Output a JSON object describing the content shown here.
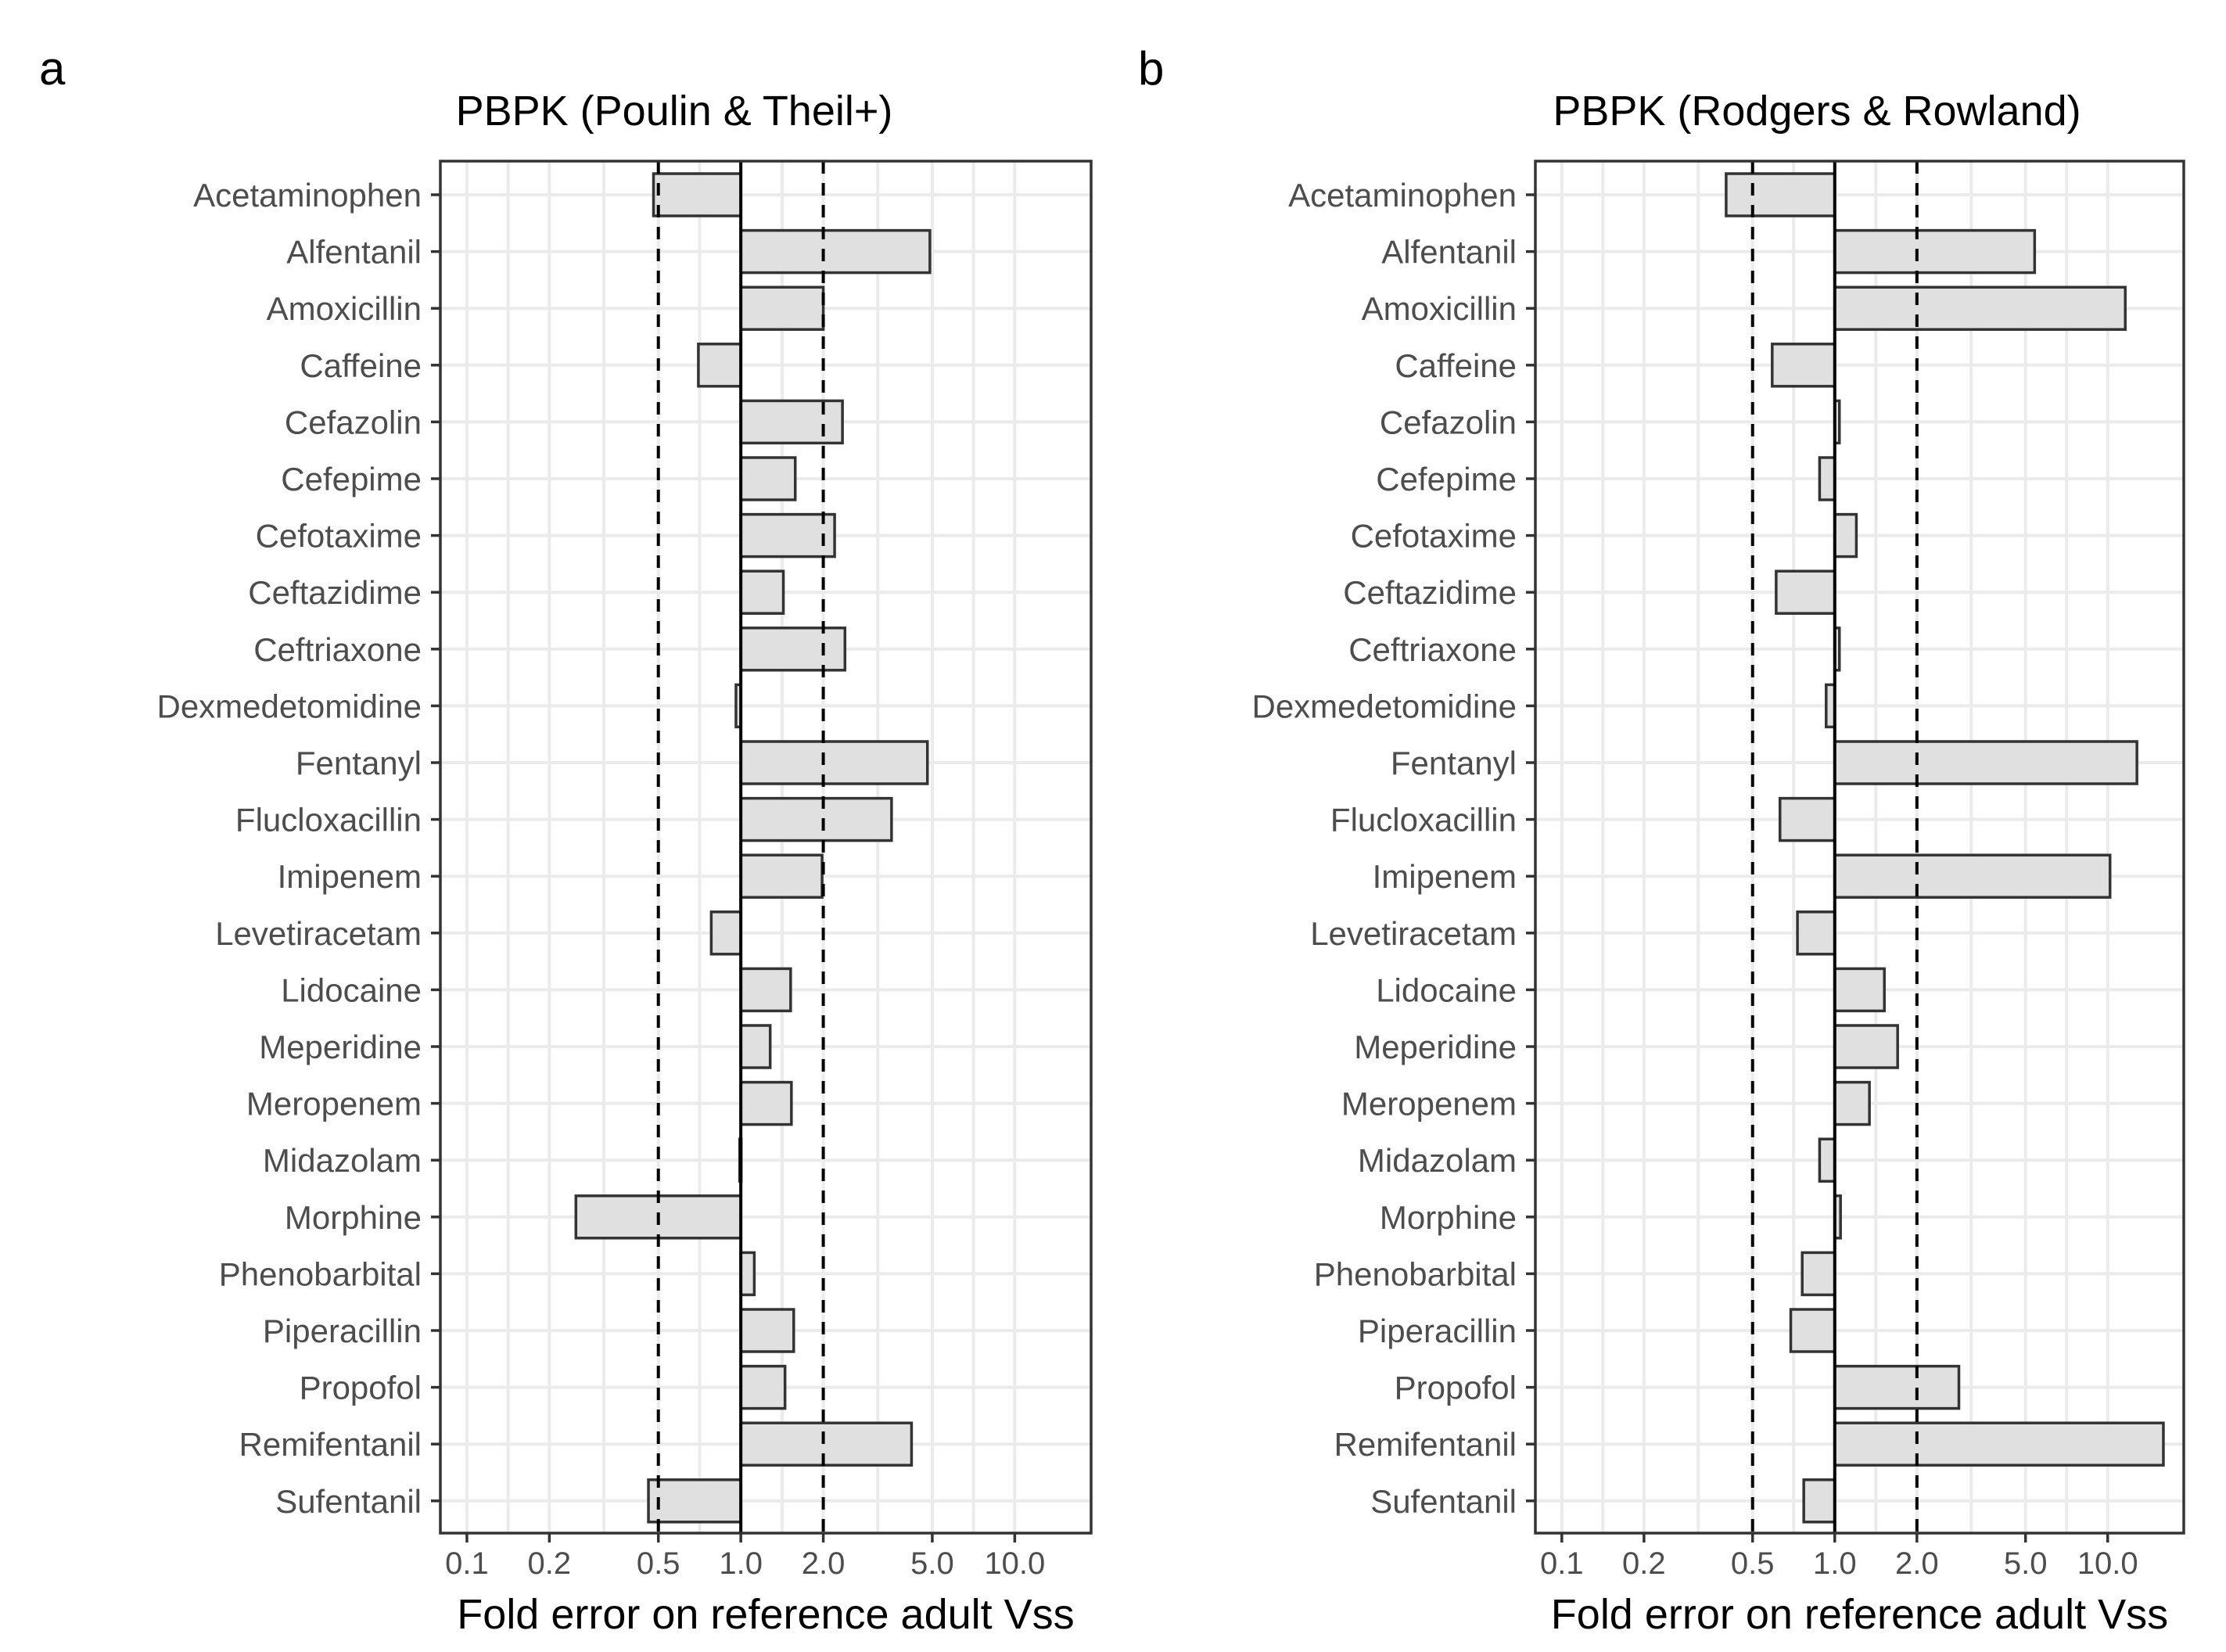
{
  "chart_data": [
    {
      "type": "bar",
      "orientation": "horizontal",
      "panel_label": "a",
      "title": "PBPK (Poulin & Theil+)",
      "xlabel": "Fold error on reference adult Vss",
      "ylabel": "",
      "xscale": "log10",
      "xlim": [
        0.08,
        19
      ],
      "x_ticks": [
        0.1,
        0.2,
        0.5,
        1.0,
        2.0,
        5.0,
        10.0
      ],
      "x_tick_labels": [
        "0.1",
        "0.2",
        "0.5",
        "1.0",
        "2.0",
        "5.0",
        "10.0"
      ],
      "reference_lines": [
        {
          "x": 0.5,
          "style": "dashed"
        },
        {
          "x": 1.0,
          "style": "solid"
        },
        {
          "x": 2.0,
          "style": "dashed"
        }
      ],
      "categories": [
        "Acetaminophen",
        "Alfentanil",
        "Amoxicillin",
        "Caffeine",
        "Cefazolin",
        "Cefepime",
        "Cefotaxime",
        "Ceftazidime",
        "Ceftriaxone",
        "Dexmedetomidine",
        "Fentanyl",
        "Flucloxacillin",
        "Imipenem",
        "Levetiracetam",
        "Lidocaine",
        "Meperidine",
        "Meropenem",
        "Midazolam",
        "Morphine",
        "Phenobarbital",
        "Piperacillin",
        "Propofol",
        "Remifentanil",
        "Sufentanil"
      ],
      "values": [
        0.48,
        4.9,
        2.0,
        0.7,
        2.35,
        1.58,
        2.2,
        1.43,
        2.4,
        0.96,
        4.8,
        3.55,
        1.98,
        0.78,
        1.52,
        1.28,
        1.53,
        0.99,
        0.25,
        1.12,
        1.56,
        1.45,
        4.2,
        0.46
      ],
      "grid": true
    },
    {
      "type": "bar",
      "orientation": "horizontal",
      "panel_label": "b",
      "title": "PBPK (Rodgers & Rowland)",
      "xlabel": "Fold error on reference adult Vss",
      "ylabel": "",
      "xscale": "log10",
      "xlim": [
        0.08,
        19
      ],
      "x_ticks": [
        0.1,
        0.2,
        0.5,
        1.0,
        2.0,
        5.0,
        10.0
      ],
      "x_tick_labels": [
        "0.1",
        "0.2",
        "0.5",
        "1.0",
        "2.0",
        "5.0",
        "10.0"
      ],
      "reference_lines": [
        {
          "x": 0.5,
          "style": "dashed"
        },
        {
          "x": 1.0,
          "style": "solid"
        },
        {
          "x": 2.0,
          "style": "dashed"
        }
      ],
      "categories": [
        "Acetaminophen",
        "Alfentanil",
        "Amoxicillin",
        "Caffeine",
        "Cefazolin",
        "Cefepime",
        "Cefotaxime",
        "Ceftazidime",
        "Ceftriaxone",
        "Dexmedetomidine",
        "Fentanyl",
        "Flucloxacillin",
        "Imipenem",
        "Levetiracetam",
        "Lidocaine",
        "Meperidine",
        "Meropenem",
        "Midazolam",
        "Morphine",
        "Phenobarbital",
        "Piperacillin",
        "Propofol",
        "Remifentanil",
        "Sufentanil"
      ],
      "values": [
        0.4,
        5.4,
        11.6,
        0.59,
        1.04,
        0.88,
        1.2,
        0.61,
        1.04,
        0.93,
        12.8,
        0.63,
        10.2,
        0.73,
        1.52,
        1.7,
        1.34,
        0.88,
        1.05,
        0.76,
        0.69,
        2.85,
        16.0,
        0.77
      ],
      "grid": true
    }
  ]
}
